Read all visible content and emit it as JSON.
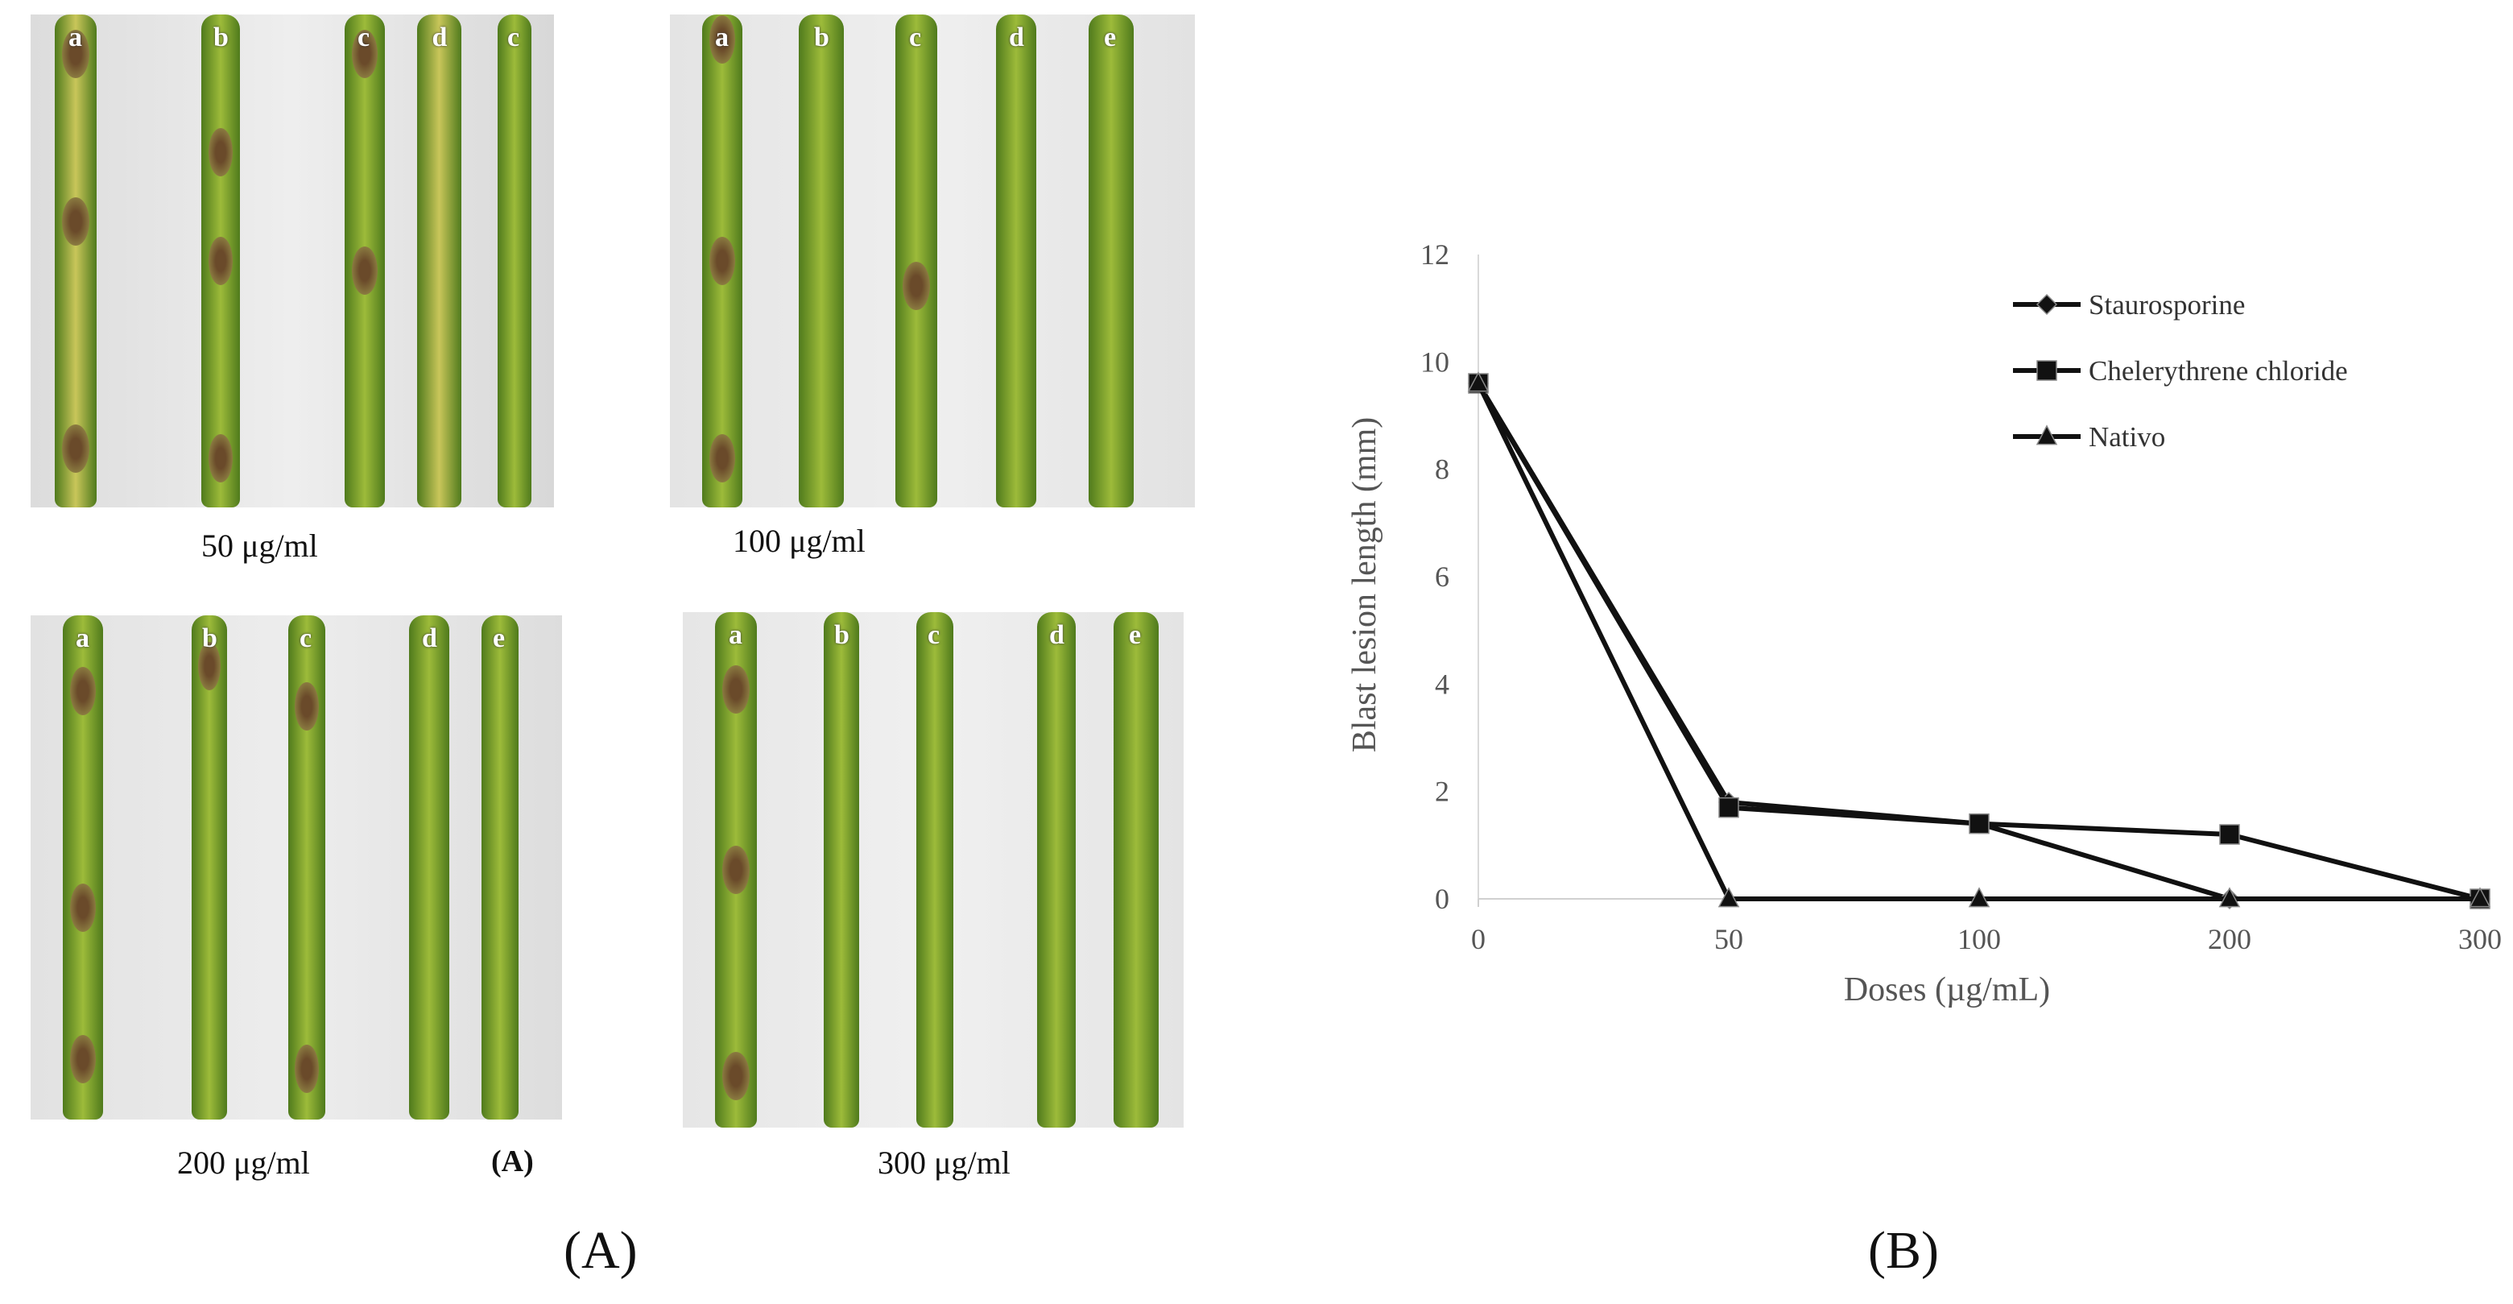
{
  "panel_a": {
    "doses": [
      {
        "label": "50 μg/ml",
        "letters": [
          "a",
          "b",
          "c",
          "d",
          "c"
        ]
      },
      {
        "label": "100 μg/ml",
        "letters": [
          "a",
          "b",
          "c",
          "d",
          "e"
        ]
      },
      {
        "label": "200 μg/ml",
        "letters": [
          "a",
          "b",
          "c",
          "d",
          "e"
        ]
      },
      {
        "label": "300 μg/ml",
        "letters": [
          "a",
          "b",
          "c",
          "d",
          "e"
        ]
      }
    ],
    "inset_label": "(A)"
  },
  "figure_labels": {
    "left": "(A)",
    "right": "(B)"
  },
  "colors": {
    "leaf_dark": "#4f7a1c",
    "leaf_light": "#9dbb3a",
    "leaf_yellow": "#c9c65a",
    "lesion": "#6a4a2a",
    "photo_bg": "#e6e6e6"
  },
  "chart_data": {
    "type": "line",
    "title": "",
    "xlabel": "Doses (µg/mL)",
    "ylabel": "Blast lesion length (mm)",
    "categories": [
      "0",
      "50",
      "100",
      "200",
      "300"
    ],
    "yticks": [
      "0",
      "2",
      "4",
      "6",
      "8",
      "10",
      "12"
    ],
    "ylim": [
      0,
      12
    ],
    "series": [
      {
        "name": "Staurosporine",
        "marker": "diamond",
        "values": [
          9.6,
          1.8,
          1.4,
          0,
          0
        ]
      },
      {
        "name": "Chelerythrene chloride",
        "marker": "square",
        "values": [
          9.6,
          1.7,
          1.4,
          1.2,
          0
        ]
      },
      {
        "name": "Nativo",
        "marker": "triangle",
        "values": [
          9.6,
          0,
          0,
          0,
          0
        ]
      }
    ],
    "legend_position": "top-right",
    "grid": false
  }
}
